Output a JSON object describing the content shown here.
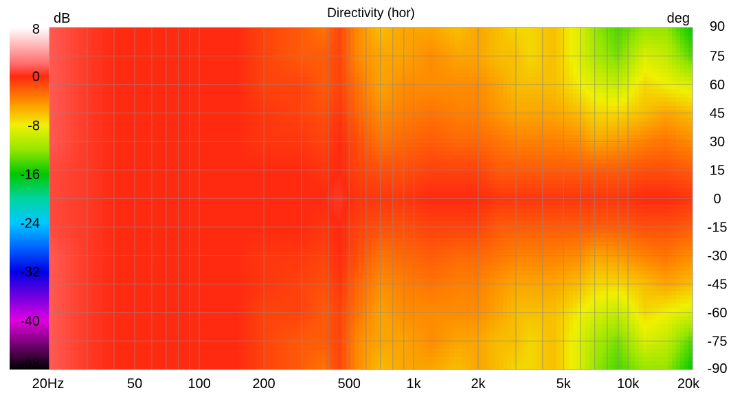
{
  "chart_data": {
    "type": "heatmap",
    "title": "Directivity (hor)",
    "colorbar": {
      "unit": "dB",
      "tick_labels": [
        "8",
        "0",
        "-8",
        "-16",
        "-24",
        "-32",
        "-40",
        "-48"
      ],
      "ticks": [
        8,
        0,
        -8,
        -16,
        -24,
        -32,
        -40,
        -48
      ],
      "range": [
        -48,
        8
      ],
      "gradient": [
        {
          "v": 8,
          "color": "#ffffff"
        },
        {
          "v": 2,
          "color": "#ff6a6a"
        },
        {
          "v": 0,
          "color": "#ff2a10"
        },
        {
          "v": -4,
          "color": "#ff8c00"
        },
        {
          "v": -8,
          "color": "#f0f000"
        },
        {
          "v": -12,
          "color": "#96e600"
        },
        {
          "v": -16,
          "color": "#00c800"
        },
        {
          "v": -20,
          "color": "#00d4a0"
        },
        {
          "v": -24,
          "color": "#00c8ff"
        },
        {
          "v": -28,
          "color": "#0064ff"
        },
        {
          "v": -32,
          "color": "#0000e6"
        },
        {
          "v": -36,
          "color": "#7000e0"
        },
        {
          "v": -40,
          "color": "#e000e0"
        },
        {
          "v": -44,
          "color": "#700070"
        },
        {
          "v": -48,
          "color": "#000000"
        }
      ]
    },
    "x_axis": {
      "scale": "log",
      "range": [
        20,
        20000
      ],
      "tick_labels": [
        "20Hz",
        "50",
        "100",
        "200",
        "500",
        "1k",
        "2k",
        "5k",
        "10k",
        "20k"
      ],
      "ticks": [
        20,
        50,
        100,
        200,
        500,
        1000,
        2000,
        5000,
        10000,
        20000
      ],
      "grid_values": [
        20,
        30,
        40,
        50,
        60,
        70,
        80,
        90,
        100,
        200,
        300,
        400,
        500,
        600,
        700,
        800,
        900,
        1000,
        2000,
        3000,
        4000,
        5000,
        6000,
        7000,
        8000,
        9000,
        10000,
        20000
      ]
    },
    "y_axis": {
      "unit": "deg",
      "range": [
        -90,
        90
      ],
      "tick_labels": [
        "90",
        "75",
        "60",
        "45",
        "30",
        "15",
        "0",
        "-15",
        "-30",
        "-45",
        "-60",
        "-75",
        "-90"
      ],
      "ticks": [
        90,
        75,
        60,
        45,
        30,
        15,
        0,
        -15,
        -30,
        -45,
        -60,
        -75,
        -90
      ]
    },
    "grid": true,
    "frequencies": [
      20,
      30,
      40,
      60,
      100,
      150,
      200,
      300,
      380,
      450,
      550,
      700,
      900,
      1200,
      1600,
      2000,
      2500,
      3000,
      3500,
      4500,
      6000,
      7000,
      9000,
      12000,
      15000,
      20000
    ],
    "angles": [
      90,
      75,
      60,
      45,
      30,
      15,
      0,
      -15,
      -30,
      -45,
      -60,
      -75,
      -90
    ],
    "levels_db": [
      [
        1.5,
        0.5,
        0,
        0,
        0,
        0,
        -1,
        -2,
        -3,
        -1,
        -4,
        -6,
        -5,
        -5,
        -6,
        -5,
        -6,
        -7,
        -7,
        -6,
        -9,
        -12,
        -14,
        -12,
        -12,
        -16
      ],
      [
        1.5,
        0.5,
        0,
        0,
        0,
        0,
        -1,
        -2,
        -2,
        -1,
        -4,
        -5,
        -5,
        -4,
        -5,
        -5,
        -6,
        -6,
        -7,
        -6,
        -9,
        -11,
        -13,
        -9,
        -10,
        -14
      ],
      [
        1.5,
        0.5,
        0,
        0,
        0,
        0,
        -1,
        -1,
        -2,
        -1,
        -3,
        -5,
        -4,
        -4,
        -4,
        -4,
        -5,
        -6,
        -6,
        -6,
        -8,
        -9,
        -10,
        -7,
        -8,
        -9
      ],
      [
        1.5,
        0.5,
        0,
        0,
        0,
        0,
        -0.5,
        -1,
        -1.5,
        -0.5,
        -2.5,
        -4,
        -3.5,
        -3,
        -3.5,
        -3.5,
        -4.5,
        -5,
        -5,
        -5,
        -6,
        -7,
        -7,
        -6,
        -5,
        -6
      ],
      [
        1.5,
        0.5,
        0,
        0,
        0,
        0,
        -0.5,
        -0.5,
        -1,
        0,
        -1.5,
        -3,
        -2.5,
        -2,
        -2.5,
        -2.5,
        -3,
        -3.5,
        -3.5,
        -3.5,
        -4,
        -5,
        -4.5,
        -3.5,
        -3,
        -4
      ],
      [
        1,
        0.5,
        0,
        0,
        0,
        0,
        0,
        0,
        -0.5,
        0,
        -1,
        -1.5,
        -1.5,
        -1,
        -1,
        -1,
        -2,
        -2,
        -2,
        -2,
        -2,
        -2,
        -2,
        -1.5,
        -1.5,
        -2
      ],
      [
        1,
        0.5,
        0,
        0,
        0,
        0,
        0,
        0,
        0,
        0.5,
        -0.5,
        -0.5,
        -0.5,
        0,
        0,
        0,
        -0.5,
        -0.5,
        -0.5,
        -0.5,
        -0.5,
        -0.5,
        -0.5,
        0,
        0,
        -0.5
      ],
      [
        1,
        0.5,
        0,
        0,
        0,
        0,
        0,
        0,
        -0.5,
        0,
        -1,
        -1.5,
        -1.5,
        -1,
        -1,
        -1,
        -2,
        -2,
        -2,
        -2,
        -2,
        -2,
        -2,
        -1.5,
        -1.5,
        -2
      ],
      [
        1.5,
        0.5,
        0,
        0,
        0,
        0,
        -0.5,
        -0.5,
        -1,
        0,
        -1.5,
        -3,
        -2.5,
        -2,
        -2.5,
        -2.5,
        -3,
        -3.5,
        -3.5,
        -3.5,
        -4,
        -5,
        -4.5,
        -3.5,
        -3,
        -4
      ],
      [
        1.5,
        0.5,
        0,
        0,
        0,
        0,
        -0.5,
        -1,
        -1.5,
        -0.5,
        -2.5,
        -4,
        -3.5,
        -3,
        -3.5,
        -3.5,
        -4.5,
        -5,
        -5,
        -5,
        -6,
        -7,
        -7,
        -6,
        -5,
        -6
      ],
      [
        1.5,
        0.5,
        0,
        0,
        0,
        0,
        -1,
        -1,
        -2,
        -1,
        -3,
        -5,
        -4,
        -4,
        -4,
        -4,
        -5,
        -6,
        -6,
        -6,
        -8,
        -9,
        -10,
        -7,
        -8,
        -9
      ],
      [
        1.5,
        0.5,
        0,
        0,
        0,
        0,
        -1,
        -2,
        -2,
        -1,
        -4,
        -5,
        -5,
        -4,
        -5,
        -5,
        -6,
        -6,
        -7,
        -6,
        -9,
        -11,
        -13,
        -9,
        -10,
        -14
      ],
      [
        1.5,
        0.5,
        0,
        0,
        0,
        0,
        -1,
        -2,
        -3,
        -1,
        -4,
        -6,
        -5,
        -5,
        -6,
        -5,
        -6,
        -7,
        -7,
        -6,
        -9,
        -12,
        -14,
        -12,
        -12,
        -16
      ]
    ]
  }
}
